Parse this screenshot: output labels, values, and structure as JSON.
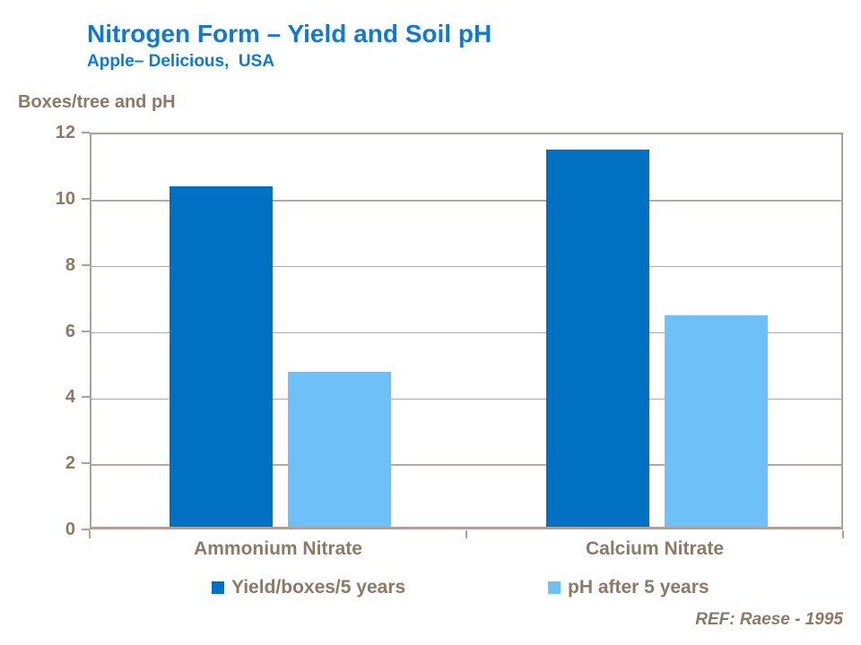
{
  "header": {
    "title": "Nitrogen Form – Yield and Soil pH",
    "subtitle": "Apple– Delicious,  USA"
  },
  "axis_title": "Boxes/tree and pH",
  "footer": {
    "ref": "REF: Raese - 1995"
  },
  "colors": {
    "title_blue": "#1379CB",
    "yield_bar": "#0070C3",
    "ph_bar": "#6EC0F8",
    "text_brown": "#8A7A66",
    "gridline": "#B3AAA1",
    "axis": "#ABA198"
  },
  "chart_data": {
    "type": "bar",
    "title": "Nitrogen Form – Yield and Soil pH",
    "subtitle": "Apple– Delicious, USA",
    "ylabel": "Boxes/tree and pH",
    "categories": [
      "Ammonium Nitrate",
      "Calcium Nitrate"
    ],
    "series": [
      {
        "name": "Yield/boxes/5 years",
        "color": "#0070C3",
        "values": [
          10.3,
          11.4
        ]
      },
      {
        "name": "pH after 5 years",
        "color": "#6EC0F8",
        "values": [
          4.7,
          6.4
        ]
      }
    ],
    "ylim": [
      0,
      12
    ],
    "y_ticks": [
      0,
      2,
      4,
      6,
      8,
      10,
      12
    ],
    "grid": true,
    "legend_position": "bottom",
    "annotation": "REF: Raese - 1995"
  }
}
